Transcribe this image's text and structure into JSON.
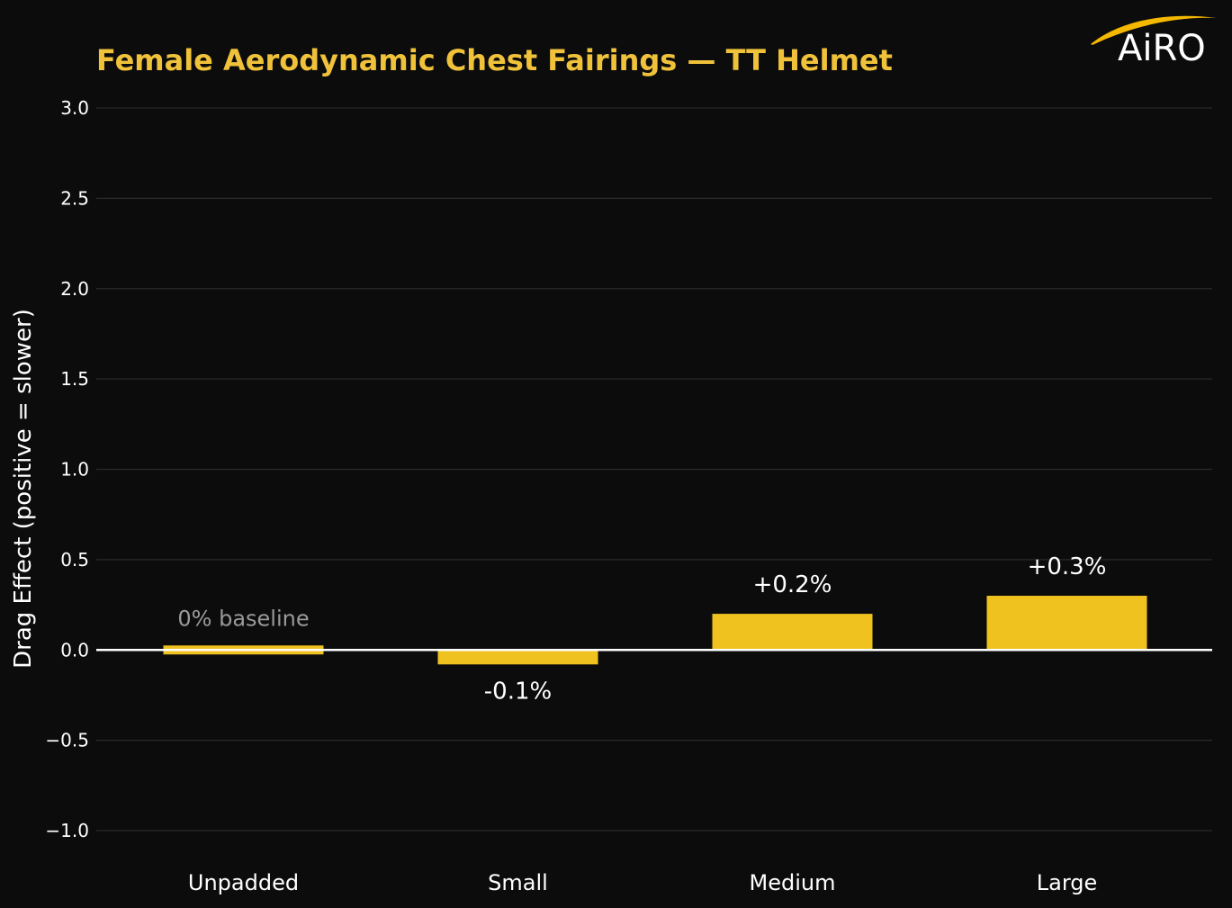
{
  "colors": {
    "background": "#0c0c0d",
    "bar": "#f0c21f",
    "title": "#f0c23a",
    "grid": "#2a2a2c",
    "zero_line": "#ffffff",
    "text": "#ffffff",
    "muted_label": "#9a9a9a"
  },
  "logo": {
    "text": "AiRO",
    "swoosh_color": "#f5b800"
  },
  "chart_data": {
    "type": "bar",
    "title": "Female Aerodynamic Chest Fairings — TT Helmet",
    "xlabel": "",
    "ylabel": "Drag Effect (positive = slower)",
    "categories": [
      "Unpadded",
      "Small",
      "Medium",
      "Large"
    ],
    "values": [
      0.0,
      -0.08,
      0.2,
      0.3
    ],
    "data_labels": [
      "0% baseline",
      "-0.1%",
      "+0.2%",
      "+0.3%"
    ],
    "ylim": [
      -1.0,
      3.0
    ],
    "yticks": [
      -1.0,
      -0.5,
      0.0,
      0.5,
      1.0,
      1.5,
      2.0,
      2.5,
      3.0
    ],
    "ytick_labels": [
      "−1.0",
      "−0.5",
      "0.0",
      "0.5",
      "1.0",
      "1.5",
      "2.0",
      "2.5",
      "3.0"
    ],
    "grid": true,
    "legend": "none"
  }
}
